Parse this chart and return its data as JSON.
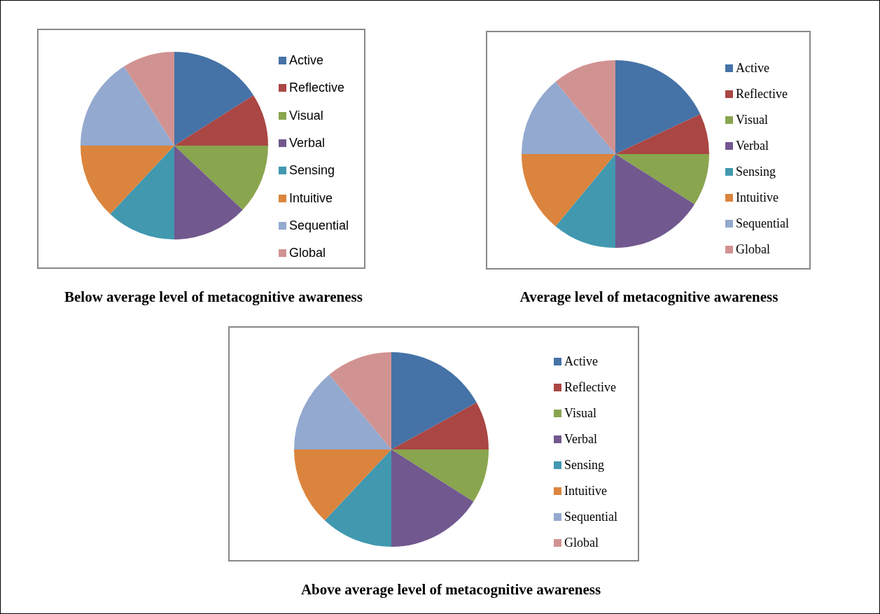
{
  "chart_data": [
    {
      "type": "pie",
      "title": "Below average level of metacognitive awareness",
      "categories": [
        "Active",
        "Reflective",
        "Visual",
        "Verbal",
        "Sensing",
        "Intuitive",
        "Sequential",
        "Global"
      ],
      "values": [
        16,
        9,
        12,
        13,
        12,
        13,
        16,
        9
      ],
      "colors": [
        "#4572a7",
        "#aa4643",
        "#89a54e",
        "#71588f",
        "#4198af",
        "#db843d",
        "#93a9cf",
        "#d19392"
      ],
      "legend": "right"
    },
    {
      "type": "pie",
      "title": "Average level of metacognitive awareness",
      "categories": [
        "Active",
        "Reflective",
        "Visual",
        "Verbal",
        "Sensing",
        "Intuitive",
        "Sequential",
        "Global"
      ],
      "values": [
        18,
        7,
        9,
        16,
        11,
        14,
        14,
        11
      ],
      "colors": [
        "#4572a7",
        "#aa4643",
        "#89a54e",
        "#71588f",
        "#4198af",
        "#db843d",
        "#93a9cf",
        "#d19392"
      ],
      "legend": "right"
    },
    {
      "type": "pie",
      "title": "Above average level of metacognitive awareness",
      "categories": [
        "Active",
        "Reflective",
        "Visual",
        "Verbal",
        "Sensing",
        "Intuitive",
        "Sequential",
        "Global"
      ],
      "values": [
        17,
        8,
        9,
        16,
        12,
        13,
        14,
        11
      ],
      "colors": [
        "#4572a7",
        "#aa4643",
        "#89a54e",
        "#71588f",
        "#4198af",
        "#db843d",
        "#93a9cf",
        "#d19392"
      ],
      "legend": "right"
    }
  ]
}
